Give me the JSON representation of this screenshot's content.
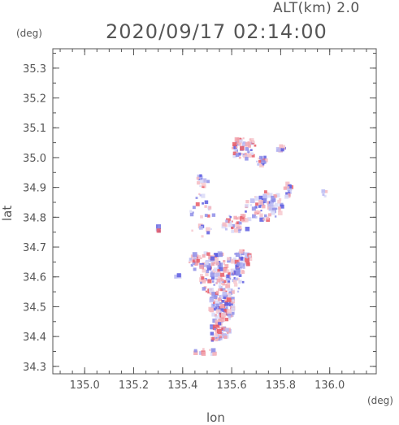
{
  "header": {
    "altitude": "ALT(km) 2.0",
    "timestamp": "2020/09/17 02:14:00"
  },
  "chart_data": {
    "type": "scatter",
    "title": "2020/09/17 02:14:00",
    "subtitle": "ALT(km) 2.0",
    "xlabel": "lon",
    "ylabel": "lat",
    "xunit": "(deg)",
    "yunit": "(deg)",
    "xlim": [
      134.87,
      136.19
    ],
    "ylim": [
      34.275,
      35.365
    ],
    "xticks": [
      "135.0",
      "135.2",
      "135.4",
      "135.6",
      "135.8",
      "136.0"
    ],
    "yticks": [
      "34.3",
      "34.4",
      "34.5",
      "34.6",
      "34.7",
      "34.8",
      "34.9",
      "35.0",
      "35.1",
      "35.2",
      "35.3"
    ],
    "grid": false,
    "colors": {
      "positive": "#e85a66",
      "negative": "#5c5ce0",
      "frame": "#555555"
    },
    "clusters": [
      {
        "lon": 135.56,
        "lat": 34.6,
        "rlon": 0.09,
        "rlat": 0.08,
        "n": 160
      },
      {
        "lon": 135.56,
        "lat": 34.5,
        "rlon": 0.05,
        "rlat": 0.06,
        "n": 90
      },
      {
        "lon": 135.55,
        "lat": 34.42,
        "rlon": 0.04,
        "rlat": 0.03,
        "n": 40
      },
      {
        "lon": 135.48,
        "lat": 34.65,
        "rlon": 0.06,
        "rlat": 0.03,
        "n": 50
      },
      {
        "lon": 135.64,
        "lat": 34.66,
        "rlon": 0.04,
        "rlat": 0.03,
        "n": 40
      },
      {
        "lon": 135.62,
        "lat": 34.78,
        "rlon": 0.06,
        "rlat": 0.03,
        "n": 40
      },
      {
        "lon": 135.73,
        "lat": 34.84,
        "rlon": 0.08,
        "rlat": 0.05,
        "n": 70
      },
      {
        "lon": 135.48,
        "lat": 34.8,
        "rlon": 0.05,
        "rlat": 0.08,
        "n": 30
      },
      {
        "lon": 135.65,
        "lat": 35.03,
        "rlon": 0.05,
        "rlat": 0.04,
        "n": 60
      },
      {
        "lon": 135.72,
        "lat": 34.99,
        "rlon": 0.02,
        "rlat": 0.02,
        "n": 15
      },
      {
        "lon": 135.8,
        "lat": 35.03,
        "rlon": 0.02,
        "rlat": 0.01,
        "n": 10
      },
      {
        "lon": 135.48,
        "lat": 34.92,
        "rlon": 0.03,
        "rlat": 0.02,
        "n": 15
      },
      {
        "lon": 135.83,
        "lat": 34.89,
        "rlon": 0.02,
        "rlat": 0.03,
        "n": 15
      },
      {
        "lon": 135.98,
        "lat": 34.88,
        "rlon": 0.01,
        "rlat": 0.01,
        "n": 4
      },
      {
        "lon": 135.3,
        "lat": 34.76,
        "rlon": 0.01,
        "rlat": 0.01,
        "n": 5
      },
      {
        "lon": 135.5,
        "lat": 34.35,
        "rlon": 0.06,
        "rlat": 0.01,
        "n": 12
      },
      {
        "lon": 135.38,
        "lat": 34.6,
        "rlon": 0.01,
        "rlat": 0.01,
        "n": 3
      },
      {
        "lon": 135.54,
        "lat": 34.39,
        "rlon": 0.02,
        "rlat": 0.01,
        "n": 8
      }
    ]
  }
}
